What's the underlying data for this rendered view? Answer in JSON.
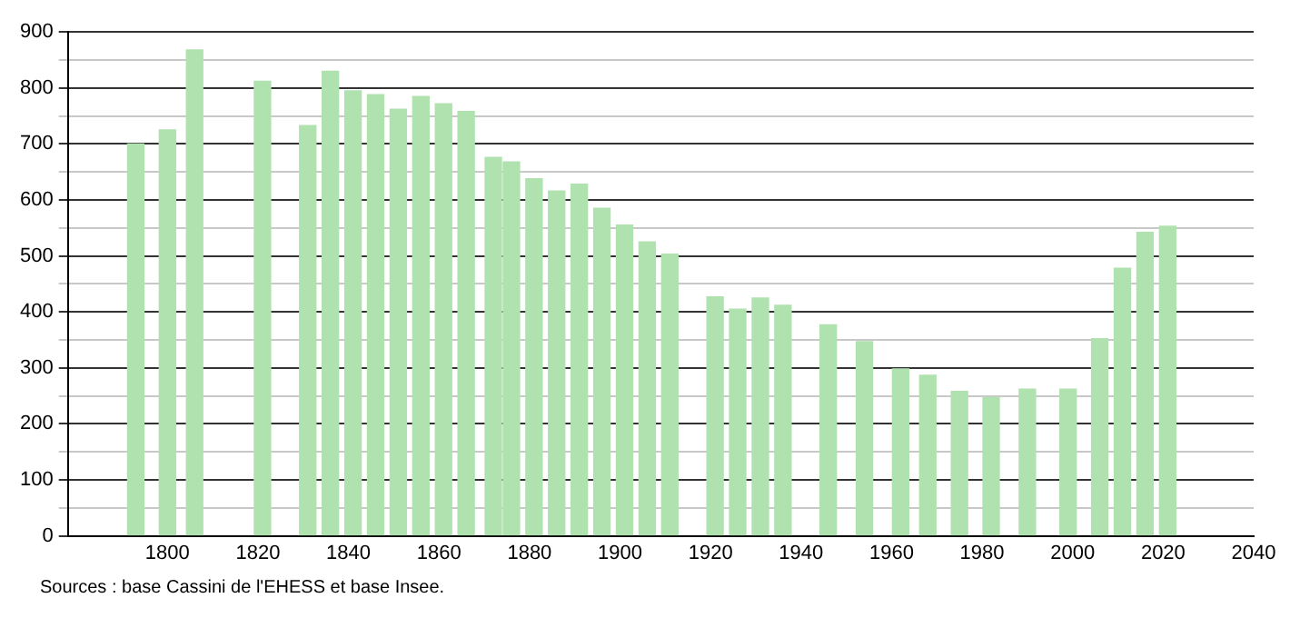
{
  "chart_data": {
    "type": "bar",
    "x": [
      1793,
      1800,
      1806,
      1821,
      1831,
      1836,
      1841,
      1846,
      1851,
      1856,
      1861,
      1866,
      1872,
      1876,
      1881,
      1886,
      1891,
      1896,
      1901,
      1906,
      1911,
      1921,
      1926,
      1931,
      1936,
      1946,
      1954,
      1962,
      1968,
      1975,
      1982,
      1990,
      1999,
      2006,
      2011,
      2016,
      2021
    ],
    "values": [
      700,
      725,
      868,
      812,
      733,
      830,
      795,
      788,
      762,
      785,
      772,
      758,
      676,
      668,
      638,
      616,
      628,
      585,
      555,
      525,
      503,
      427,
      405,
      425,
      412,
      377,
      347,
      298,
      287,
      258,
      247,
      262,
      262,
      352,
      478,
      542,
      553
    ],
    "color": "#b0e2b0",
    "xlim": [
      1778,
      2040
    ],
    "xticks": [
      1800,
      1820,
      1840,
      1860,
      1880,
      1900,
      1920,
      1940,
      1960,
      1980,
      2000,
      2020,
      2040
    ],
    "ylim": [
      0,
      900
    ],
    "yticks": [
      0,
      {
        "value": 50,
        "label": null
      },
      100,
      {
        "value": 150,
        "label": null
      },
      200,
      {
        "value": 250,
        "label": null
      },
      300,
      {
        "value": 350,
        "label": null
      },
      400,
      {
        "value": 450,
        "label": null
      },
      500,
      {
        "value": 550,
        "label": null
      },
      600,
      {
        "value": 650,
        "label": null
      },
      700,
      {
        "value": 750,
        "label": null
      },
      800,
      {
        "value": 850,
        "label": null
      },
      900
    ],
    "grid": "y",
    "legend": false,
    "annotations": [
      "Sources : base Cassini de l'EHESS et base Insee."
    ]
  }
}
